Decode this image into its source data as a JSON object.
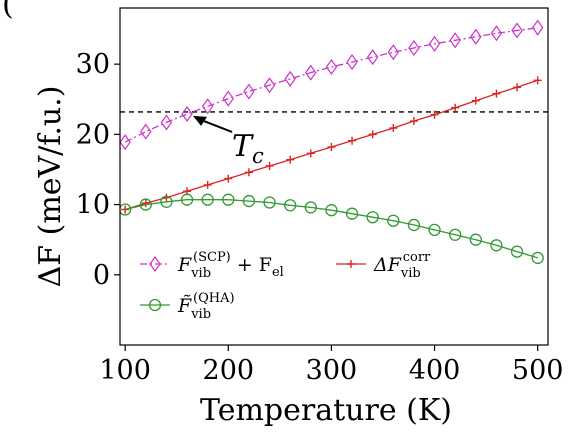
{
  "chart_data": {
    "type": "line",
    "title": "",
    "panel_label": "(",
    "xlabel": "Temperature (K)",
    "ylabel": "ΔF (meV/f.u.)",
    "xlim": [
      95,
      510
    ],
    "ylim": [
      -10,
      38
    ],
    "xticks": [
      100,
      200,
      300,
      400,
      500
    ],
    "yticks": [
      0,
      10,
      20,
      30
    ],
    "grid": false,
    "legend_position": "lower-left",
    "series": [
      {
        "name": "F_vib^(SCP) + F_el",
        "color": "#cc33cc",
        "marker": "diamond",
        "line_style": "dash-dot",
        "x": [
          100,
          120,
          140,
          160,
          180,
          200,
          220,
          240,
          260,
          280,
          300,
          320,
          340,
          360,
          380,
          400,
          420,
          440,
          460,
          480,
          500
        ],
        "values": [
          18.9,
          20.4,
          21.7,
          22.9,
          24.0,
          25.1,
          26.1,
          27.0,
          27.9,
          28.8,
          29.6,
          30.3,
          31.0,
          31.7,
          32.3,
          32.9,
          33.4,
          33.9,
          34.4,
          34.8,
          35.2
        ]
      },
      {
        "name": "ΔF_vib^corr",
        "color": "#dd2222",
        "marker": "plus",
        "line_style": "solid",
        "x": [
          100,
          120,
          140,
          160,
          180,
          200,
          220,
          240,
          260,
          280,
          300,
          320,
          340,
          360,
          380,
          400,
          420,
          440,
          460,
          480,
          500
        ],
        "values": [
          9.3,
          10.2,
          11.0,
          11.9,
          12.8,
          13.7,
          14.6,
          15.5,
          16.4,
          17.3,
          18.2,
          19.1,
          20.0,
          20.9,
          21.9,
          22.8,
          23.8,
          24.8,
          25.8,
          26.7,
          27.7
        ]
      },
      {
        "name": "F̃_vib^(QHA)",
        "color": "#339933",
        "marker": "circle",
        "line_style": "solid",
        "x": [
          100,
          120,
          140,
          160,
          180,
          200,
          220,
          240,
          260,
          280,
          300,
          320,
          340,
          360,
          380,
          400,
          420,
          440,
          460,
          480,
          500
        ],
        "values": [
          9.3,
          10.0,
          10.4,
          10.7,
          10.7,
          10.7,
          10.5,
          10.3,
          9.9,
          9.6,
          9.2,
          8.7,
          8.2,
          7.7,
          7.1,
          6.4,
          5.7,
          5.0,
          4.2,
          3.3,
          2.4
        ]
      }
    ],
    "reference_line": {
      "y": 23.2,
      "style": "dashed",
      "color": "#000000"
    },
    "annotations": [
      {
        "text": "T",
        "subscript": "c",
        "arrow_to": {
          "x": 160,
          "y": 23.2
        }
      }
    ]
  }
}
